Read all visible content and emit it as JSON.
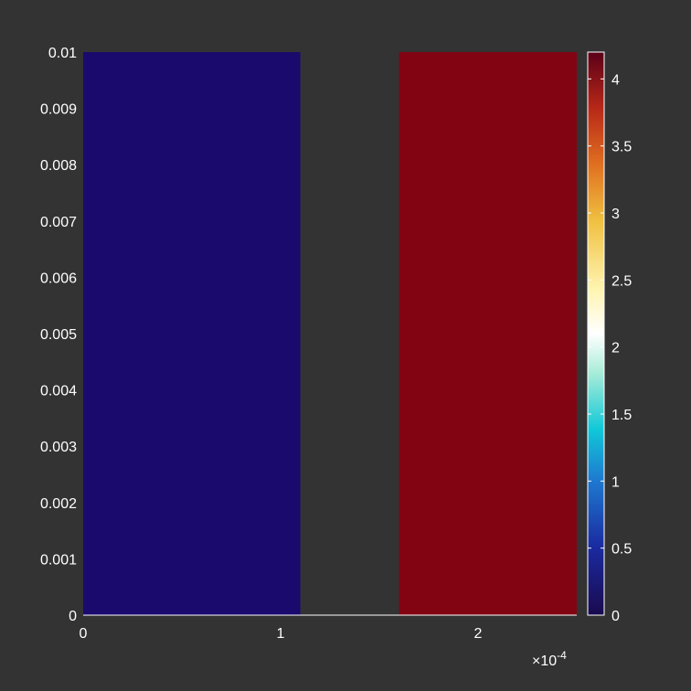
{
  "chart_data": {
    "type": "heatmap",
    "title": "",
    "xlabel": "",
    "ylabel": "",
    "x_multiplier": "×10",
    "x_multiplier_exponent": "-4",
    "xlim": [
      0,
      0.00025
    ],
    "ylim": [
      0,
      0.01
    ],
    "x_ticks": [
      {
        "value": 0,
        "label": "0"
      },
      {
        "value": 0.0001,
        "label": "1"
      },
      {
        "value": 0.0002,
        "label": "2"
      }
    ],
    "y_ticks": [
      {
        "value": 0,
        "label": "0"
      },
      {
        "value": 0.001,
        "label": "0.001"
      },
      {
        "value": 0.002,
        "label": "0.002"
      },
      {
        "value": 0.003,
        "label": "0.003"
      },
      {
        "value": 0.004,
        "label": "0.004"
      },
      {
        "value": 0.005,
        "label": "0.005"
      },
      {
        "value": 0.006,
        "label": "0.006"
      },
      {
        "value": 0.007,
        "label": "0.007"
      },
      {
        "value": 0.008,
        "label": "0.008"
      },
      {
        "value": 0.009,
        "label": "0.009"
      },
      {
        "value": 0.01,
        "label": "0.01"
      }
    ],
    "regions": [
      {
        "x0": 0,
        "x1": 0.00011,
        "y0": 0,
        "y1": 0.01,
        "value": 0,
        "color": "#1a0a6e"
      },
      {
        "x0": 0.00016,
        "x1": 0.00025,
        "y0": 0,
        "y1": 0.01,
        "value": 4.2,
        "color": "#820412"
      }
    ],
    "colorbar": {
      "range": [
        0,
        4.2
      ],
      "ticks": [
        {
          "value": 0,
          "label": "0"
        },
        {
          "value": 0.5,
          "label": "0.5"
        },
        {
          "value": 1,
          "label": "1"
        },
        {
          "value": 1.5,
          "label": "1.5"
        },
        {
          "value": 2,
          "label": "2"
        },
        {
          "value": 2.5,
          "label": "2.5"
        },
        {
          "value": 3,
          "label": "3"
        },
        {
          "value": 3.5,
          "label": "3.5"
        },
        {
          "value": 4,
          "label": "4"
        }
      ],
      "colormap": [
        {
          "pos": 0.0,
          "color": "#1a0a4e"
        },
        {
          "pos": 0.12,
          "color": "#1a2aa0"
        },
        {
          "pos": 0.24,
          "color": "#1e7ad0"
        },
        {
          "pos": 0.33,
          "color": "#10c8d8"
        },
        {
          "pos": 0.43,
          "color": "#a8ecd8"
        },
        {
          "pos": 0.5,
          "color": "#ffffff"
        },
        {
          "pos": 0.58,
          "color": "#fff4b0"
        },
        {
          "pos": 0.7,
          "color": "#f0c040"
        },
        {
          "pos": 0.8,
          "color": "#e07020"
        },
        {
          "pos": 0.9,
          "color": "#b82818"
        },
        {
          "pos": 1.0,
          "color": "#5a0018"
        }
      ]
    },
    "background_color": "#333333",
    "grid": false
  }
}
